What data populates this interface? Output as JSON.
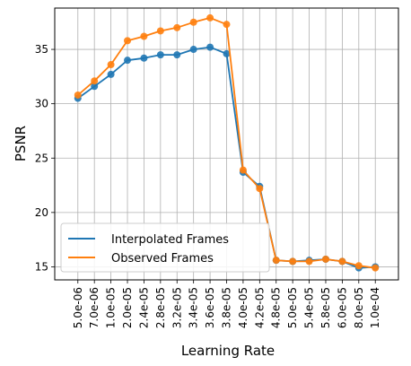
{
  "chart_data": {
    "type": "line",
    "xlabel": "Learning Rate",
    "ylabel": "PSNR",
    "categories": [
      "5.0e-06",
      "7.0e-06",
      "1.0e-05",
      "2.0e-05",
      "2.4e-05",
      "2.8e-05",
      "3.2e-05",
      "3.4e-05",
      "3.6e-05",
      "3.8e-05",
      "4.0e-05",
      "4.2e-05",
      "4.8e-05",
      "5.0e-05",
      "5.4e-05",
      "5.8e-05",
      "6.0e-05",
      "8.0e-05",
      "1.0e-04"
    ],
    "ylim": [
      13.8,
      38.8
    ],
    "yticks": [
      15,
      20,
      25,
      30,
      35
    ],
    "grid": true,
    "legend_position": "bottom-left",
    "series": [
      {
        "name": "Interpolated Frames",
        "color": "#1f77b4",
        "values": [
          30.5,
          31.6,
          32.7,
          34.0,
          34.2,
          34.5,
          34.5,
          35.0,
          35.2,
          34.6,
          23.7,
          22.4,
          15.6,
          15.5,
          15.6,
          15.7,
          15.5,
          14.9,
          15.0
        ]
      },
      {
        "name": "Observed Frames",
        "color": "#ff7f0e",
        "values": [
          30.8,
          32.1,
          33.6,
          35.8,
          36.2,
          36.7,
          37.0,
          37.5,
          37.9,
          37.3,
          23.9,
          22.2,
          15.6,
          15.5,
          15.5,
          15.7,
          15.5,
          15.1,
          14.9
        ]
      }
    ]
  }
}
